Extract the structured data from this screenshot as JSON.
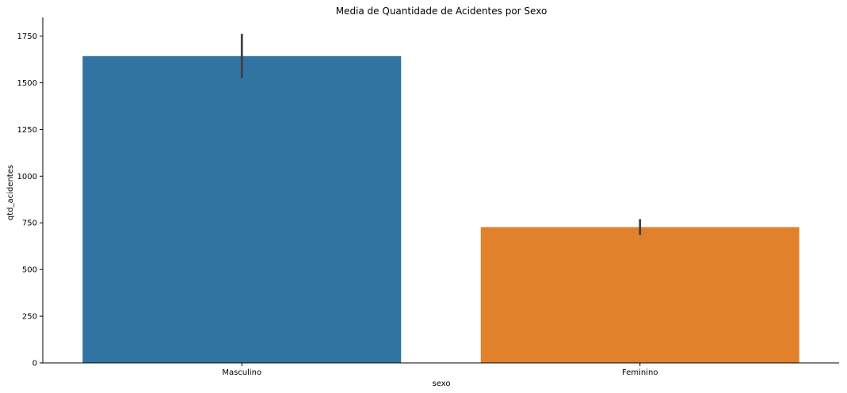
{
  "chart_data": {
    "type": "bar",
    "title": "Media de Quantidade de Acidentes por Sexo",
    "xlabel": "sexo",
    "ylabel": "qtd_acidentes",
    "categories": [
      "Masculino",
      "Feminino"
    ],
    "values": [
      1643,
      727
    ],
    "error_bars": [
      [
        1525,
        1762
      ],
      [
        685,
        770
      ]
    ],
    "colors": [
      "#3274a1",
      "#e1812c"
    ],
    "error_bar_color": "#3f3f3f",
    "ylim": [
      0,
      1850
    ],
    "yticks": [
      0,
      250,
      500,
      750,
      1000,
      1250,
      1500,
      1750
    ],
    "grid": false,
    "legend": "none"
  }
}
